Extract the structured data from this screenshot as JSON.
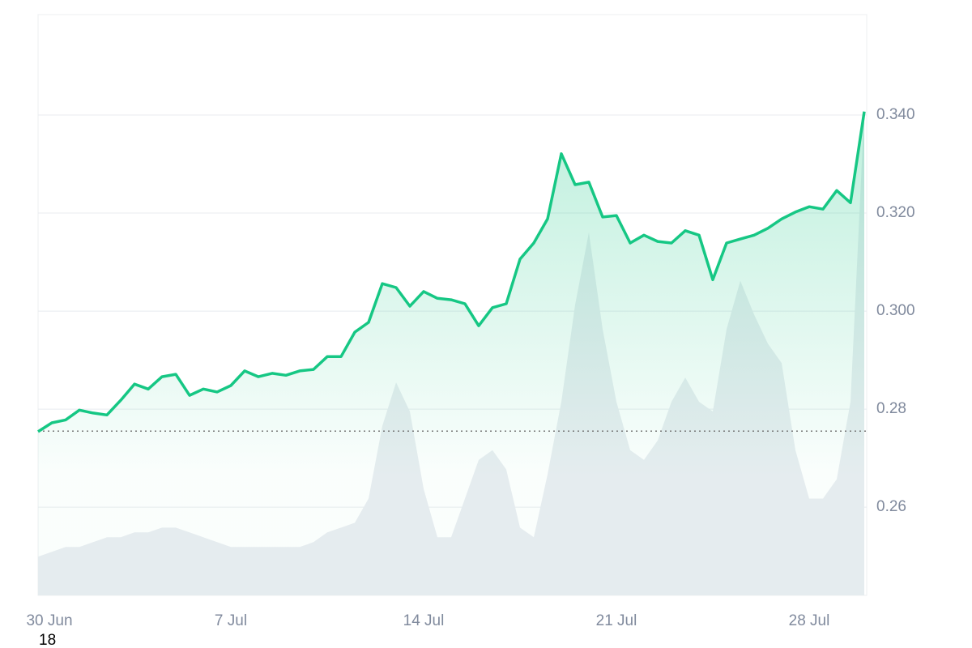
{
  "chart_data": {
    "type": "line",
    "categories": [
      "30 Jun",
      null,
      null,
      null,
      null,
      null,
      null,
      null,
      null,
      null,
      null,
      null,
      null,
      null,
      "7 Jul",
      null,
      null,
      null,
      null,
      null,
      null,
      null,
      null,
      null,
      null,
      null,
      null,
      null,
      "14 Jul",
      null,
      null,
      null,
      null,
      null,
      null,
      null,
      null,
      null,
      null,
      null,
      null,
      null,
      "21 Jul",
      null,
      null,
      null,
      null,
      null,
      null,
      null,
      null,
      null,
      null,
      null,
      null,
      null,
      "28 Jul",
      null,
      null,
      null,
      null
    ],
    "series": [
      {
        "color": "#16c784",
        "values": [
          0.2754,
          0.2772,
          0.2778,
          0.2798,
          0.2792,
          0.2788,
          0.2818,
          0.2851,
          0.2841,
          0.2866,
          0.2871,
          0.2828,
          0.2841,
          0.2835,
          0.2848,
          0.2878,
          0.2866,
          0.2873,
          0.2869,
          0.2878,
          0.2881,
          0.2907,
          0.2907,
          0.2957,
          0.2977,
          0.3056,
          0.3048,
          0.301,
          0.304,
          0.3026,
          0.3023,
          0.3015,
          0.297,
          0.3007,
          0.3015,
          0.3106,
          0.3139,
          0.3188,
          0.3321,
          0.3258,
          0.3263,
          0.3192,
          0.3195,
          0.3139,
          0.3155,
          0.3142,
          0.3139,
          0.3164,
          0.3155,
          0.3064,
          0.3139,
          0.3147,
          0.3155,
          0.3169,
          0.3188,
          0.3202,
          0.3213,
          0.3208,
          0.3246,
          0.3221,
          0.3407
        ]
      },
      {
        "color": "#e9edf1",
        "axis": "y2",
        "values": [
          8,
          9,
          10,
          10,
          11,
          12,
          12,
          13,
          13,
          14,
          14,
          13,
          12,
          11,
          10,
          10,
          10,
          10,
          10,
          10,
          11,
          13,
          14,
          15,
          20,
          35,
          44,
          38,
          22,
          12,
          12,
          20,
          28,
          30,
          26,
          14,
          12,
          25,
          40,
          60,
          75,
          55,
          40,
          30,
          28,
          32,
          40,
          45,
          40,
          38,
          55,
          65,
          58,
          52,
          48,
          30,
          20,
          20,
          24,
          40,
          100
        ]
      }
    ],
    "ylim": [
      0.242,
      0.3605
    ],
    "yticks": [
      {
        "value": 0.34,
        "label": "0.340"
      },
      {
        "value": 0.32,
        "label": "0.320"
      },
      {
        "value": 0.3,
        "label": "0.300"
      },
      0.28,
      0.26
    ],
    "y2lim": [
      0,
      120
    ],
    "reference_line": 0.2755,
    "grid": true,
    "annotations": [
      "18"
    ]
  }
}
